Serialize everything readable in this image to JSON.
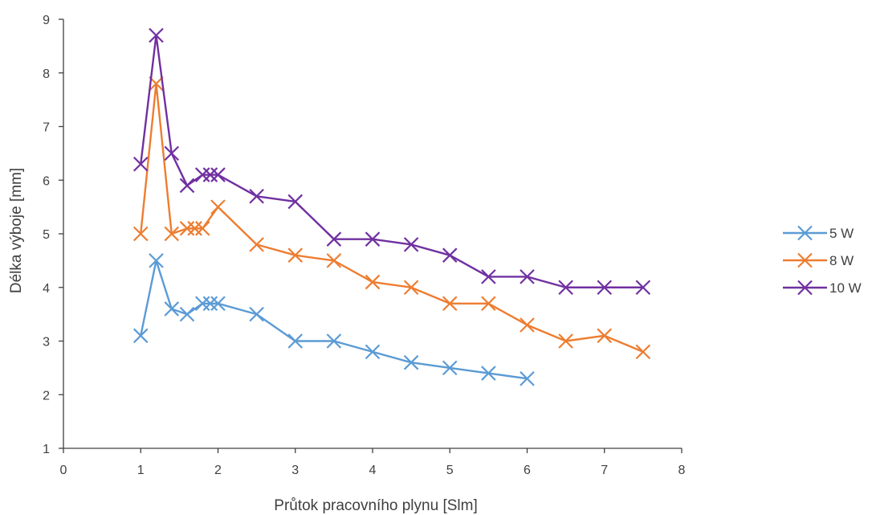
{
  "chart_data": {
    "type": "line",
    "title": "",
    "xlabel": "Průtok pracovního plynu [Slm]",
    "ylabel": "Délka výboje [mm]",
    "xlim": [
      0,
      8
    ],
    "ylim": [
      1,
      9
    ],
    "xticks": [
      0,
      1,
      2,
      3,
      4,
      5,
      6,
      7,
      8
    ],
    "yticks": [
      1,
      2,
      3,
      4,
      5,
      6,
      7,
      8,
      9
    ],
    "grid": false,
    "legend_position": "right",
    "marker": "x",
    "series": [
      {
        "name": "5 W",
        "color": "#5B9BD5",
        "x": [
          1,
          1.2,
          1.4,
          1.6,
          1.8,
          1.9,
          2,
          2.5,
          3,
          3.5,
          4,
          4.5,
          5,
          5.5,
          6
        ],
        "y": [
          3.1,
          4.5,
          3.6,
          3.5,
          3.7,
          3.7,
          3.7,
          3.5,
          3.0,
          3.0,
          2.8,
          2.6,
          2.5,
          2.4,
          2.3
        ]
      },
      {
        "name": "8 W",
        "color": "#ED7D31",
        "x": [
          1,
          1.2,
          1.4,
          1.6,
          1.7,
          1.8,
          2,
          2.5,
          3,
          3.5,
          4,
          4.5,
          5,
          5.5,
          6,
          6.5,
          7,
          7.5
        ],
        "y": [
          5.0,
          7.8,
          5.0,
          5.1,
          5.1,
          5.1,
          5.5,
          4.8,
          4.6,
          4.5,
          4.1,
          4.0,
          3.7,
          3.7,
          3.3,
          3.0,
          3.1,
          2.8
        ]
      },
      {
        "name": "10 W",
        "color": "#7030A0",
        "x": [
          1,
          1.2,
          1.4,
          1.6,
          1.8,
          1.9,
          2,
          2.5,
          3,
          3.5,
          4,
          4.5,
          5,
          5.5,
          6,
          6.5,
          7,
          7.5
        ],
        "y": [
          6.3,
          8.7,
          6.5,
          5.9,
          6.1,
          6.1,
          6.1,
          5.7,
          5.6,
          4.9,
          4.9,
          4.8,
          4.6,
          4.2,
          4.2,
          4.0,
          4.0,
          4.0
        ]
      }
    ]
  }
}
